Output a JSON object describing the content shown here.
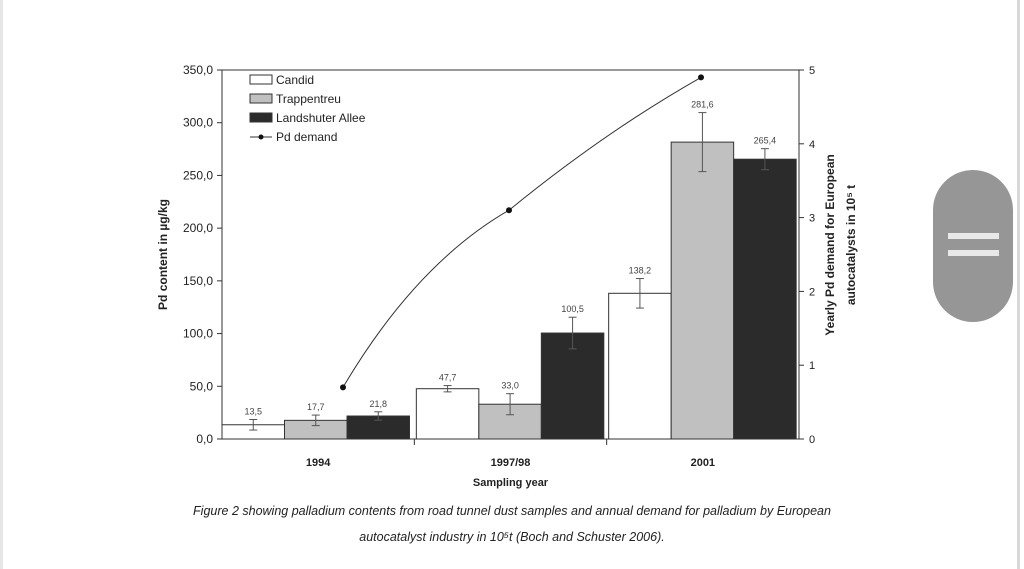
{
  "chart_data": {
    "type": "bar",
    "title": "",
    "categories": [
      "1994",
      "1997/98",
      "2001"
    ],
    "xlabel": "Sampling year",
    "ylabel": "Pd content in µg/kg",
    "ylabel_right_line1": "Yearly Pd demand for European",
    "ylabel_right_line2": "autocatalysts  in 10⁵ t",
    "ylim": [
      0,
      350
    ],
    "y_ticks": [
      "0,0",
      "50,0",
      "100,0",
      "150,0",
      "200,0",
      "250,0",
      "300,0",
      "350,0"
    ],
    "y_tick_values": [
      0,
      50,
      100,
      150,
      200,
      250,
      300,
      350
    ],
    "y2lim": [
      0,
      5
    ],
    "y2_ticks": [
      "0",
      "1",
      "2",
      "3",
      "4",
      "5"
    ],
    "legend_position": "top-left",
    "series": [
      {
        "name": "Candid",
        "color": "#ffffff",
        "values": [
          13.5,
          47.7,
          138.2
        ],
        "labels": [
          "13,5",
          "47,7",
          "138,2"
        ],
        "errors": [
          5,
          3,
          14
        ]
      },
      {
        "name": "Trappentreu",
        "color": "#c0c0c0",
        "values": [
          17.7,
          33.0,
          281.6
        ],
        "labels": [
          "17,7",
          "33,0",
          "281,6"
        ],
        "errors": [
          5,
          10,
          28
        ]
      },
      {
        "name": "Landshuter Allee",
        "color": "#2b2b2b",
        "values": [
          21.8,
          100.5,
          265.4
        ],
        "labels": [
          "21,8",
          "100,5",
          "265,4"
        ],
        "errors": [
          4,
          15,
          10
        ]
      }
    ],
    "line_series": {
      "name": "Pd demand",
      "axis": "right",
      "values": [
        0.7,
        3.1,
        4.9
      ]
    }
  },
  "caption": {
    "line1": "Figure 2 showing palladium contents from road tunnel dust samples and annual demand for palladium by European",
    "line2": "autocatalyst industry in 10⁵t (Boch and Schuster 2006)."
  }
}
